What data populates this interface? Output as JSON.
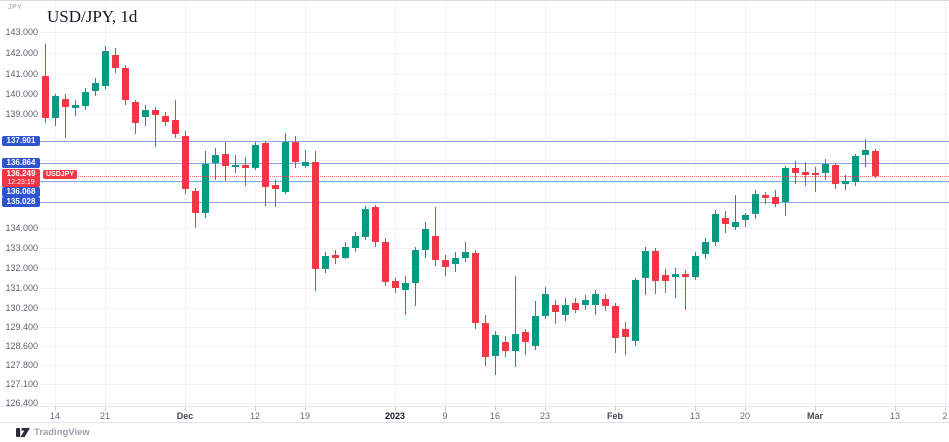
{
  "header": {
    "axis_currency": "JPY",
    "title": "USD/JPY, 1d"
  },
  "footer": {
    "brand": "TradingView"
  },
  "price_line": {
    "symbol_tag": "USDJPY",
    "price": "136.249",
    "time": "12:23:19"
  },
  "levels": [
    {
      "price": 137.901,
      "label": "137.901"
    },
    {
      "price": 136.864,
      "label": "136.864"
    },
    {
      "price": 136.068,
      "label": "136.068"
    },
    {
      "price": 135.028,
      "label": "135.028"
    }
  ],
  "y_axis": {
    "ticks": [
      {
        "price": 143.0,
        "label": "143.000"
      },
      {
        "price": 142.0,
        "label": "142.000"
      },
      {
        "price": 141.0,
        "label": "141.000"
      },
      {
        "price": 140.0,
        "label": "140.000"
      },
      {
        "price": 139.0,
        "label": "139.000"
      },
      {
        "price": 134.0,
        "label": "134.000"
      },
      {
        "price": 133.0,
        "label": "133.000"
      },
      {
        "price": 132.0,
        "label": "132.000"
      },
      {
        "price": 131.0,
        "label": "131.000"
      },
      {
        "price": 130.2,
        "label": "130.200"
      },
      {
        "price": 129.4,
        "label": "129.400"
      },
      {
        "price": 128.6,
        "label": "128.600"
      },
      {
        "price": 127.8,
        "label": "127.800"
      },
      {
        "price": 127.1,
        "label": "127.100"
      },
      {
        "price": 126.4,
        "label": "126.400"
      }
    ],
    "grid_only_prices": [
      138.0,
      137.0,
      136.0,
      135.0
    ]
  },
  "x_axis": {
    "ticks": [
      {
        "label": "14",
        "index": 2,
        "kind": "day"
      },
      {
        "label": "21",
        "index": 7,
        "kind": "day"
      },
      {
        "label": "Dec",
        "index": 15,
        "kind": "month"
      },
      {
        "label": "12",
        "index": 22,
        "kind": "day"
      },
      {
        "label": "19",
        "index": 27,
        "kind": "day"
      },
      {
        "label": "2023",
        "index": 36,
        "kind": "year"
      },
      {
        "label": "9",
        "index": 41,
        "kind": "day"
      },
      {
        "label": "16",
        "index": 46,
        "kind": "day"
      },
      {
        "label": "23",
        "index": 51,
        "kind": "day"
      },
      {
        "label": "Feb",
        "index": 58,
        "kind": "month"
      },
      {
        "label": "13",
        "index": 66,
        "kind": "day"
      },
      {
        "label": "20",
        "index": 71,
        "kind": "day"
      },
      {
        "label": "Mar",
        "index": 78,
        "kind": "month"
      },
      {
        "label": "13",
        "index": 86,
        "kind": "day"
      },
      {
        "label": "2",
        "index": 91,
        "kind": "day"
      }
    ]
  },
  "colors": {
    "up": "#089981",
    "down": "#f23645",
    "level_line": "#8fa6e6",
    "level_chip": "#2e55cf",
    "current_price": "#f23645",
    "background": "#ffffff"
  },
  "chart_data": {
    "type": "candlestick",
    "symbol": "USD/JPY",
    "interval": "1d",
    "title": "USD/JPY, 1d",
    "columns": [
      "date",
      "open",
      "high",
      "low",
      "close"
    ],
    "rows": [
      [
        "Nov 11",
        140.9,
        142.4,
        138.6,
        138.8
      ],
      [
        "Nov 14",
        138.8,
        140.0,
        138.5,
        139.9
      ],
      [
        "Nov 15",
        139.75,
        140.0,
        138.0,
        139.35
      ],
      [
        "Nov 16",
        139.3,
        139.7,
        138.9,
        139.45
      ],
      [
        "Nov 17",
        139.4,
        140.3,
        139.2,
        140.1
      ],
      [
        "Nov 18",
        140.15,
        140.8,
        139.9,
        140.55
      ],
      [
        "Nov 21",
        140.35,
        142.3,
        140.2,
        142.05
      ],
      [
        "Nov 22",
        141.9,
        142.2,
        141.0,
        141.25
      ],
      [
        "Nov 23",
        141.25,
        141.4,
        139.4,
        139.7
      ],
      [
        "Nov 24",
        139.6,
        139.7,
        138.15,
        138.6
      ],
      [
        "Nov 25",
        138.85,
        139.45,
        138.5,
        139.2
      ],
      [
        "Nov 28",
        139.2,
        139.35,
        137.6,
        138.95
      ],
      [
        "Nov 29",
        138.9,
        139.1,
        138.5,
        138.65
      ],
      [
        "Nov 30",
        138.75,
        139.7,
        138.0,
        138.15
      ],
      [
        "Dec 1",
        138.1,
        138.3,
        135.4,
        135.65
      ],
      [
        "Dec 2",
        135.55,
        135.7,
        134.0,
        134.6
      ],
      [
        "Dec 5",
        134.6,
        137.4,
        134.4,
        136.8
      ],
      [
        "Dec 6",
        136.85,
        137.55,
        136.1,
        137.2
      ],
      [
        "Dec 7",
        137.25,
        137.85,
        136.05,
        136.7
      ],
      [
        "Dec 8",
        136.65,
        137.2,
        136.4,
        136.75
      ],
      [
        "Dec 9",
        136.75,
        137.1,
        135.8,
        136.6
      ],
      [
        "Dec 12",
        136.6,
        137.85,
        136.55,
        137.7
      ],
      [
        "Dec 13",
        137.8,
        137.9,
        134.85,
        135.75
      ],
      [
        "Dec 14",
        135.85,
        136.1,
        134.8,
        135.65
      ],
      [
        "Dec 15",
        135.5,
        138.2,
        135.4,
        137.85
      ],
      [
        "Dec 16",
        137.85,
        138.1,
        136.6,
        136.9
      ],
      [
        "Dec 19",
        136.7,
        137.45,
        136.6,
        136.9
      ],
      [
        "Dec 20",
        136.9,
        137.4,
        130.85,
        131.9
      ],
      [
        "Dec 21",
        131.9,
        132.8,
        131.7,
        132.6
      ],
      [
        "Dec 22",
        132.65,
        132.9,
        132.2,
        132.5
      ],
      [
        "Dec 23",
        132.5,
        133.3,
        132.45,
        133.05
      ],
      [
        "Dec 27",
        133.0,
        133.8,
        132.8,
        133.6
      ],
      [
        "Dec 28",
        133.55,
        134.85,
        133.4,
        134.75
      ],
      [
        "Dec 29",
        134.8,
        134.9,
        133.05,
        133.3
      ],
      [
        "Dec 30",
        133.3,
        133.5,
        131.1,
        131.3
      ],
      [
        "Jan 2",
        131.35,
        131.5,
        130.8,
        131.0
      ],
      [
        "Jan 3",
        130.9,
        131.6,
        129.9,
        131.25
      ],
      [
        "Jan 4",
        131.2,
        133.05,
        130.25,
        132.9
      ],
      [
        "Jan 5",
        132.9,
        134.25,
        132.5,
        133.95
      ],
      [
        "Jan 6",
        133.6,
        134.8,
        132.1,
        132.4
      ],
      [
        "Jan 9",
        132.4,
        132.65,
        131.55,
        132.0
      ],
      [
        "Jan 10",
        132.2,
        132.8,
        131.75,
        132.5
      ],
      [
        "Jan 11",
        132.5,
        133.3,
        132.3,
        132.8
      ],
      [
        "Jan 12",
        132.75,
        132.9,
        129.3,
        129.55
      ],
      [
        "Jan 13",
        129.55,
        129.9,
        127.75,
        128.1
      ],
      [
        "Jan 16",
        128.15,
        129.2,
        127.4,
        129.05
      ],
      [
        "Jan 17",
        128.75,
        129.0,
        128.1,
        128.35
      ],
      [
        "Jan 18",
        128.35,
        131.6,
        127.7,
        129.1
      ],
      [
        "Jan 19",
        129.15,
        129.3,
        128.2,
        128.75
      ],
      [
        "Jan 20",
        128.6,
        130.45,
        128.4,
        129.85
      ],
      [
        "Jan 23",
        129.85,
        131.05,
        129.7,
        130.75
      ],
      [
        "Jan 24",
        130.3,
        130.5,
        129.5,
        130.0
      ],
      [
        "Jan 25",
        129.9,
        130.6,
        129.65,
        130.3
      ],
      [
        "Jan 26",
        130.4,
        130.6,
        129.95,
        130.1
      ],
      [
        "Jan 27",
        130.3,
        130.7,
        130.1,
        130.5
      ],
      [
        "Jan 30",
        130.3,
        130.9,
        129.9,
        130.75
      ],
      [
        "Jan 31",
        130.55,
        130.75,
        130.05,
        130.25
      ],
      [
        "Feb 1",
        130.25,
        130.4,
        128.3,
        128.9
      ],
      [
        "Feb 2",
        129.3,
        129.6,
        128.2,
        128.95
      ],
      [
        "Feb 3",
        128.8,
        131.5,
        128.6,
        131.4
      ],
      [
        "Feb 6",
        131.45,
        133.05,
        130.7,
        132.85
      ],
      [
        "Feb 7",
        132.85,
        133.0,
        130.75,
        131.3
      ],
      [
        "Feb 8",
        131.65,
        131.95,
        130.8,
        131.35
      ],
      [
        "Feb 9",
        131.55,
        132.0,
        130.6,
        131.7
      ],
      [
        "Feb 10",
        131.7,
        131.9,
        130.1,
        131.55
      ],
      [
        "Feb 13",
        131.5,
        132.8,
        131.35,
        132.6
      ],
      [
        "Feb 14",
        132.7,
        133.5,
        132.45,
        133.3
      ],
      [
        "Feb 15",
        133.3,
        134.7,
        133.1,
        134.55
      ],
      [
        "Feb 16",
        134.4,
        134.65,
        133.75,
        134.15
      ],
      [
        "Feb 17",
        134.05,
        135.35,
        133.9,
        134.25
      ],
      [
        "Feb 20",
        134.3,
        134.6,
        134.05,
        134.5
      ],
      [
        "Feb 21",
        134.55,
        135.6,
        134.35,
        135.4
      ],
      [
        "Feb 22",
        135.35,
        135.5,
        134.95,
        135.2
      ],
      [
        "Feb 23",
        135.25,
        135.6,
        134.8,
        134.95
      ],
      [
        "Feb 24",
        135.0,
        136.7,
        134.45,
        136.6
      ],
      [
        "Feb 27",
        136.6,
        136.95,
        135.9,
        136.4
      ],
      [
        "Feb 28",
        136.45,
        136.9,
        135.8,
        136.3
      ],
      [
        "Mar 1",
        136.4,
        136.65,
        135.5,
        136.3
      ],
      [
        "Mar 2",
        136.4,
        137.05,
        136.1,
        136.8
      ],
      [
        "Mar 3",
        136.75,
        136.85,
        135.65,
        135.9
      ],
      [
        "Mar 6",
        135.9,
        136.3,
        135.6,
        136.05
      ],
      [
        "Mar 7",
        136.0,
        137.25,
        135.8,
        137.15
      ],
      [
        "Mar 8",
        137.2,
        137.95,
        136.65,
        137.45
      ],
      [
        "Mar 9",
        137.4,
        137.5,
        136.2,
        136.249
      ]
    ]
  }
}
